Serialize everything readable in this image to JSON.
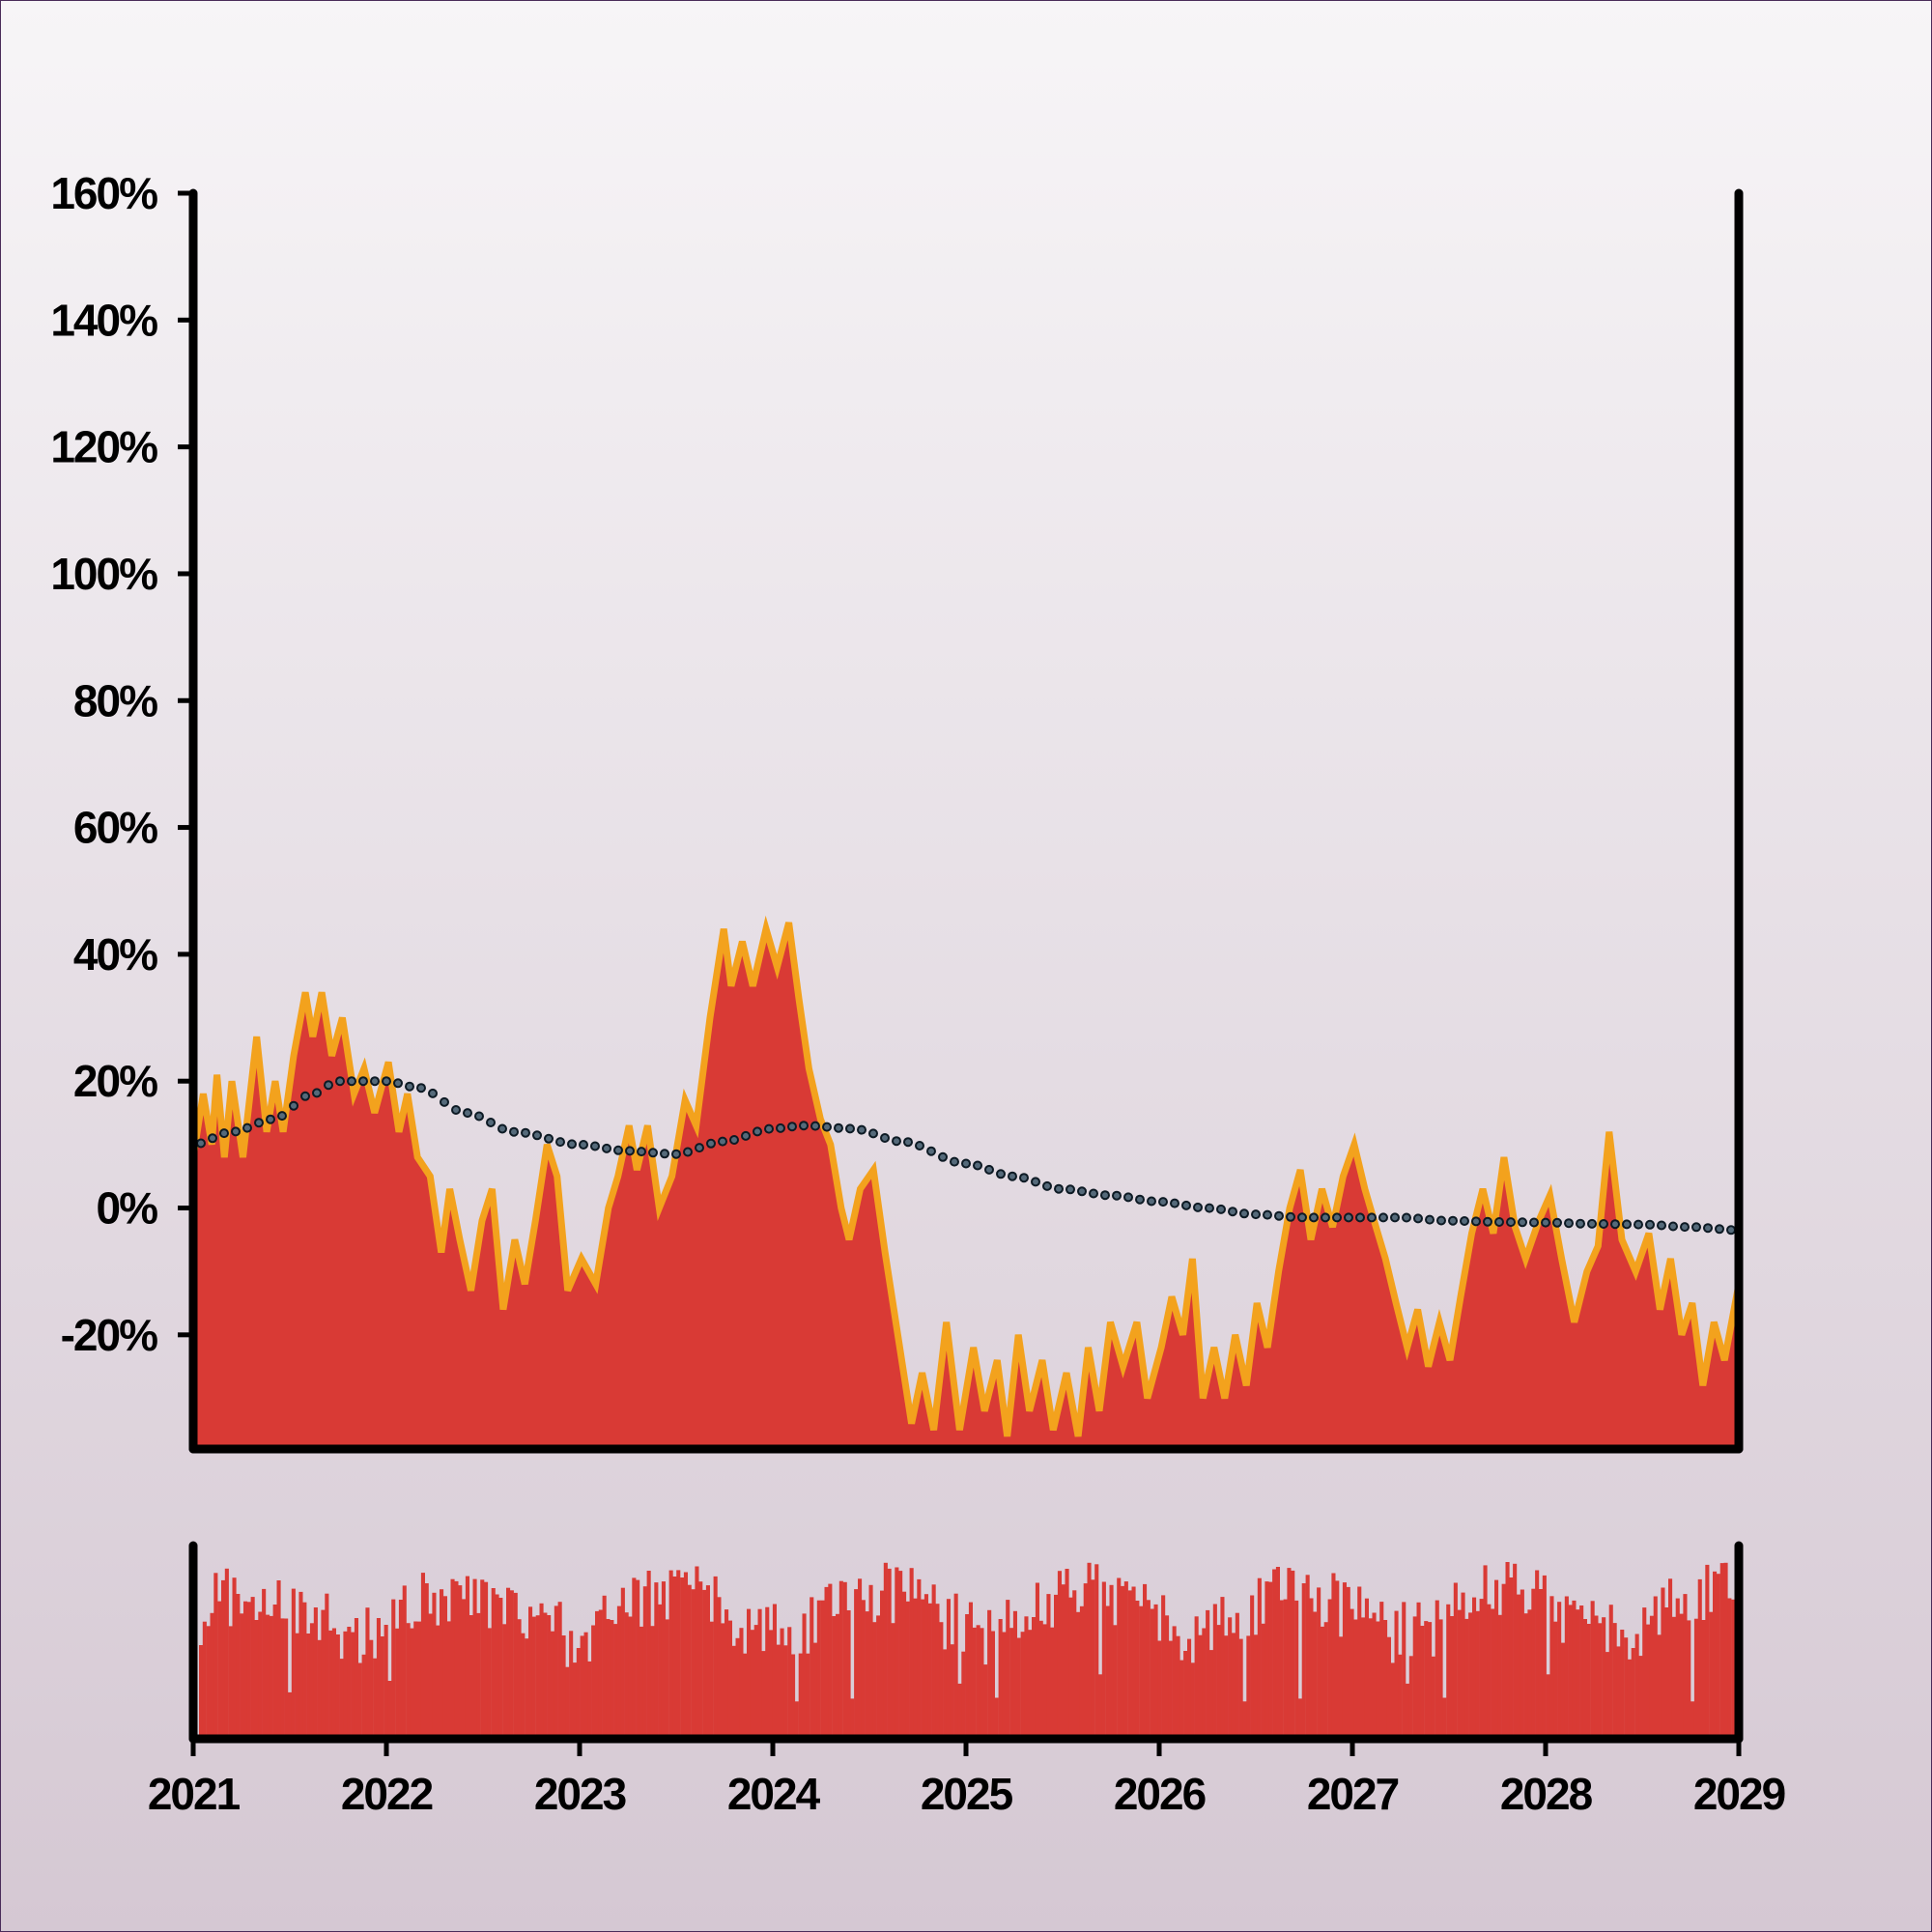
{
  "chart_data": [
    {
      "type": "area",
      "x_axis": {
        "scale": "date",
        "range": [
          "2021-01-01",
          "2029-01-01"
        ],
        "tick_labels": [
          "2021",
          "2022",
          "2023",
          "2024",
          "2025",
          "2026",
          "2027",
          "2028",
          "2029"
        ]
      },
      "y_axis": {
        "unit": "%",
        "range": [
          -38,
          160
        ],
        "ticks": [
          -20,
          0,
          20,
          40,
          60,
          80,
          100,
          120,
          140,
          160
        ],
        "tick_labels": [
          "-20%",
          "0%",
          "20%",
          "40%",
          "60%",
          "80%",
          "100%",
          "120%",
          "140%",
          "160%"
        ]
      },
      "grid": false,
      "legend": "none",
      "series": [
        {
          "kind": "area",
          "fill_color": "#d93a35",
          "line_color": "#f3a21d",
          "points": [
            [
              "2021-01-01",
              8
            ],
            [
              "2021-01-20",
              18
            ],
            [
              "2021-02-05",
              10
            ],
            [
              "2021-02-15",
              21
            ],
            [
              "2021-03-01",
              8
            ],
            [
              "2021-03-15",
              20
            ],
            [
              "2021-04-05",
              8
            ],
            [
              "2021-05-01",
              27
            ],
            [
              "2021-05-20",
              12
            ],
            [
              "2021-06-05",
              20
            ],
            [
              "2021-06-20",
              12
            ],
            [
              "2021-07-10",
              24
            ],
            [
              "2021-08-01",
              34
            ],
            [
              "2021-08-15",
              27
            ],
            [
              "2021-09-01",
              34
            ],
            [
              "2021-09-20",
              24
            ],
            [
              "2021-10-10",
              30
            ],
            [
              "2021-11-01",
              18
            ],
            [
              "2021-11-20",
              22
            ],
            [
              "2021-12-10",
              15
            ],
            [
              "2022-01-05",
              23
            ],
            [
              "2022-01-25",
              12
            ],
            [
              "2022-02-10",
              18
            ],
            [
              "2022-03-01",
              8
            ],
            [
              "2022-03-25",
              5
            ],
            [
              "2022-04-15",
              -7
            ],
            [
              "2022-05-01",
              3
            ],
            [
              "2022-05-20",
              -5
            ],
            [
              "2022-06-10",
              -13
            ],
            [
              "2022-07-01",
              -2
            ],
            [
              "2022-07-20",
              3
            ],
            [
              "2022-08-10",
              -16
            ],
            [
              "2022-09-01",
              -5
            ],
            [
              "2022-09-20",
              -12
            ],
            [
              "2022-10-10",
              -2
            ],
            [
              "2022-11-01",
              10
            ],
            [
              "2022-11-20",
              5
            ],
            [
              "2022-12-10",
              -13
            ],
            [
              "2023-01-05",
              -8
            ],
            [
              "2023-02-01",
              -12
            ],
            [
              "2023-02-25",
              0
            ],
            [
              "2023-03-15",
              5
            ],
            [
              "2023-04-05",
              13
            ],
            [
              "2023-04-20",
              6
            ],
            [
              "2023-05-10",
              13
            ],
            [
              "2023-06-01",
              0
            ],
            [
              "2023-06-25",
              5
            ],
            [
              "2023-07-20",
              17
            ],
            [
              "2023-08-10",
              13
            ],
            [
              "2023-09-05",
              30
            ],
            [
              "2023-10-01",
              44
            ],
            [
              "2023-10-15",
              35
            ],
            [
              "2023-11-05",
              42
            ],
            [
              "2023-11-25",
              35
            ],
            [
              "2023-12-20",
              44
            ],
            [
              "2024-01-10",
              38
            ],
            [
              "2024-02-01",
              45
            ],
            [
              "2024-02-20",
              33
            ],
            [
              "2024-03-10",
              22
            ],
            [
              "2024-04-01",
              14
            ],
            [
              "2024-04-20",
              10
            ],
            [
              "2024-05-10",
              0
            ],
            [
              "2024-05-25",
              -5
            ],
            [
              "2024-06-15",
              3
            ],
            [
              "2024-07-10",
              6
            ],
            [
              "2024-08-01",
              -7
            ],
            [
              "2024-08-25",
              -20
            ],
            [
              "2024-09-20",
              -34
            ],
            [
              "2024-10-10",
              -26
            ],
            [
              "2024-11-01",
              -35
            ],
            [
              "2024-11-25",
              -18
            ],
            [
              "2024-12-20",
              -35
            ],
            [
              "2025-01-15",
              -22
            ],
            [
              "2025-02-05",
              -32
            ],
            [
              "2025-03-01",
              -24
            ],
            [
              "2025-03-20",
              -36
            ],
            [
              "2025-04-10",
              -20
            ],
            [
              "2025-05-01",
              -32
            ],
            [
              "2025-05-25",
              -24
            ],
            [
              "2025-06-15",
              -35
            ],
            [
              "2025-07-10",
              -26
            ],
            [
              "2025-08-01",
              -36
            ],
            [
              "2025-08-20",
              -22
            ],
            [
              "2025-09-10",
              -32
            ],
            [
              "2025-10-01",
              -18
            ],
            [
              "2025-10-25",
              -25
            ],
            [
              "2025-11-20",
              -18
            ],
            [
              "2025-12-10",
              -30
            ],
            [
              "2026-01-05",
              -22
            ],
            [
              "2026-01-25",
              -14
            ],
            [
              "2026-02-15",
              -20
            ],
            [
              "2026-03-05",
              -8
            ],
            [
              "2026-03-25",
              -30
            ],
            [
              "2026-04-15",
              -22
            ],
            [
              "2026-05-05",
              -30
            ],
            [
              "2026-05-25",
              -20
            ],
            [
              "2026-06-15",
              -28
            ],
            [
              "2026-07-05",
              -15
            ],
            [
              "2026-07-25",
              -22
            ],
            [
              "2026-08-15",
              -10
            ],
            [
              "2026-09-05",
              0
            ],
            [
              "2026-09-25",
              6
            ],
            [
              "2026-10-15",
              -5
            ],
            [
              "2026-11-05",
              3
            ],
            [
              "2026-11-25",
              -3
            ],
            [
              "2026-12-15",
              5
            ],
            [
              "2027-01-05",
              10
            ],
            [
              "2027-01-25",
              3
            ],
            [
              "2027-02-15",
              -3
            ],
            [
              "2027-03-05",
              -8
            ],
            [
              "2027-03-25",
              -15
            ],
            [
              "2027-04-15",
              -22
            ],
            [
              "2027-05-05",
              -16
            ],
            [
              "2027-05-25",
              -25
            ],
            [
              "2027-06-15",
              -18
            ],
            [
              "2027-07-05",
              -24
            ],
            [
              "2027-07-25",
              -14
            ],
            [
              "2027-08-15",
              -4
            ],
            [
              "2027-09-05",
              3
            ],
            [
              "2027-09-25",
              -4
            ],
            [
              "2027-10-15",
              8
            ],
            [
              "2027-11-05",
              -3
            ],
            [
              "2027-11-25",
              -8
            ],
            [
              "2027-12-20",
              -2
            ],
            [
              "2028-01-10",
              2
            ],
            [
              "2028-02-01",
              -8
            ],
            [
              "2028-02-25",
              -18
            ],
            [
              "2028-03-20",
              -10
            ],
            [
              "2028-04-10",
              -6
            ],
            [
              "2028-05-01",
              12
            ],
            [
              "2028-05-25",
              -5
            ],
            [
              "2028-06-20",
              -10
            ],
            [
              "2028-07-15",
              -4
            ],
            [
              "2028-08-05",
              -16
            ],
            [
              "2028-08-25",
              -8
            ],
            [
              "2028-09-15",
              -20
            ],
            [
              "2028-10-05",
              -15
            ],
            [
              "2028-10-25",
              -28
            ],
            [
              "2028-11-15",
              -18
            ],
            [
              "2028-12-05",
              -24
            ],
            [
              "2029-01-01",
              -12
            ]
          ]
        },
        {
          "kind": "dotted-trend",
          "color": "#1c2833",
          "points": [
            [
              "2021-01-01",
              10
            ],
            [
              "2021-03-15",
              12
            ],
            [
              "2021-06-01",
              14
            ],
            [
              "2021-08-15",
              18
            ],
            [
              "2021-10-01",
              20
            ],
            [
              "2022-01-01",
              20
            ],
            [
              "2022-03-01",
              19
            ],
            [
              "2022-06-01",
              15
            ],
            [
              "2022-09-01",
              12
            ],
            [
              "2023-01-01",
              10
            ],
            [
              "2023-04-01",
              9
            ],
            [
              "2023-07-01",
              8.5
            ],
            [
              "2023-10-01",
              10.5
            ],
            [
              "2024-01-01",
              12.5
            ],
            [
              "2024-03-01",
              13
            ],
            [
              "2024-06-01",
              12.5
            ],
            [
              "2024-09-01",
              10.5
            ],
            [
              "2025-01-01",
              7
            ],
            [
              "2025-04-01",
              5
            ],
            [
              "2025-07-01",
              3
            ],
            [
              "2025-10-01",
              2
            ],
            [
              "2026-01-01",
              1
            ],
            [
              "2026-04-01",
              0
            ],
            [
              "2026-07-01",
              -1
            ],
            [
              "2026-10-01",
              -1.5
            ],
            [
              "2027-01-01",
              -1.5
            ],
            [
              "2027-04-01",
              -1.5
            ],
            [
              "2027-07-01",
              -2
            ],
            [
              "2027-10-01",
              -2.2
            ],
            [
              "2028-01-01",
              -2.3
            ],
            [
              "2028-04-01",
              -2.5
            ],
            [
              "2028-07-01",
              -2.6
            ],
            [
              "2028-10-01",
              -3
            ],
            [
              "2029-01-01",
              -3.5
            ]
          ]
        }
      ]
    },
    {
      "type": "bar",
      "position": "lower panel",
      "bar_color": "#d93a35",
      "x_axis": {
        "scale": "date",
        "range": [
          "2021-01-01",
          "2029-01-01"
        ]
      },
      "y_axis": {
        "range": [
          0,
          1
        ],
        "tick_labels": []
      },
      "values_note": "relative bar heights (0–1) of dense weekly bars"
    }
  ]
}
